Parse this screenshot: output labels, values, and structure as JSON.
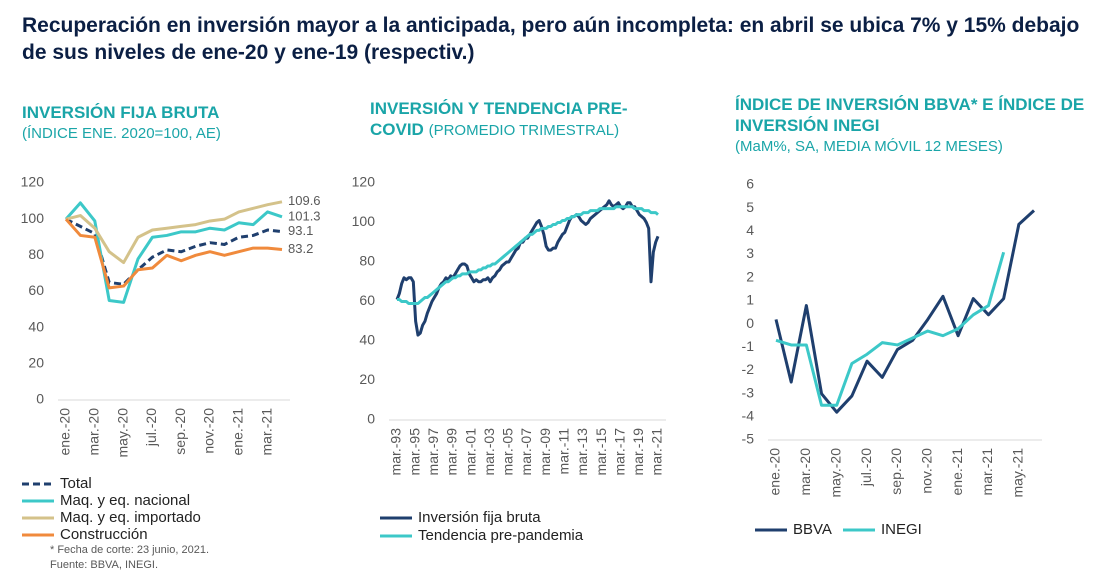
{
  "title": "Recuperación en inversión mayor a la anticipada, pero aún incompleta: en abril se ubica 7% y 15% debajo de sus niveles de ene-20 y ene-19 (respectiv.)",
  "footnotes": [
    "* Fecha de corte: 23 junio, 2021.",
    "Fuente: BBVA, INEGI."
  ],
  "chart_data": [
    {
      "type": "line",
      "title": "INVERSIÓN FIJA BRUTA",
      "subtitle": "(ÍNDICE ENE. 2020=100, AE)",
      "categories": [
        "ene.-20",
        null,
        "mar.-20",
        null,
        "may.-20",
        null,
        "jul.-20",
        null,
        "sep.-20",
        null,
        "nov.-20",
        null,
        "ene.-21",
        null,
        "mar.-21",
        null
      ],
      "series": [
        {
          "name": "Total",
          "color": "#1f3f6e",
          "dashed": true,
          "values": [
            100,
            96,
            92,
            65,
            64,
            72,
            79,
            83,
            82,
            85,
            87,
            86,
            90,
            91,
            94,
            93.1
          ]
        },
        {
          "name": "Maq. y eq. nacional",
          "color": "#3cc8c8",
          "values": [
            100,
            109,
            99,
            55,
            54,
            78,
            90,
            91,
            93,
            93,
            95,
            94,
            98,
            97,
            104,
            101.3
          ]
        },
        {
          "name": "Maq. y eq. importado",
          "color": "#d4c28a",
          "values": [
            100,
            102,
            95,
            82,
            76,
            90,
            94,
            95,
            96,
            97,
            99,
            100,
            104,
            106,
            108,
            109.6
          ]
        },
        {
          "name": "Construcción",
          "color": "#f08a3c",
          "values": [
            100,
            91,
            90,
            62,
            63,
            72,
            73,
            80,
            77,
            80,
            82,
            80,
            82,
            84,
            84,
            83.2
          ]
        }
      ],
      "label_last": true,
      "ylim": [
        0,
        120
      ],
      "yticks": [
        0,
        20,
        40,
        60,
        80,
        100,
        120
      ],
      "grid": false,
      "legend": "bottom"
    },
    {
      "type": "line",
      "title": "INVERSIÓN Y TENDENCIA PRE-COVID",
      "subtitle": "(PROMEDIO TRIMESTRAL)",
      "categories": [
        "mar.-93",
        null,
        null,
        null,
        null,
        null,
        null,
        null,
        "mar.-95",
        null,
        null,
        null,
        null,
        null,
        null,
        null,
        "mar.-97",
        null,
        null,
        null,
        null,
        null,
        null,
        null,
        "mar.-99",
        null,
        null,
        null,
        null,
        null,
        null,
        null,
        "mar.-01",
        null,
        null,
        null,
        null,
        null,
        null,
        null,
        "mar.-03",
        null,
        null,
        null,
        null,
        null,
        null,
        null,
        "mar.-05",
        null,
        null,
        null,
        null,
        null,
        null,
        null,
        "mar.-07",
        null,
        null,
        null,
        null,
        null,
        null,
        null,
        "mar.-09",
        null,
        null,
        null,
        null,
        null,
        null,
        null,
        "mar.-11",
        null,
        null,
        null,
        null,
        null,
        null,
        null,
        "mar.-13",
        null,
        null,
        null,
        null,
        null,
        null,
        null,
        "mar.-15",
        null,
        null,
        null,
        null,
        null,
        null,
        null,
        "mar.-17",
        null,
        null,
        null,
        null,
        null,
        null,
        null,
        "mar.-19",
        null,
        null,
        null,
        null,
        null,
        null,
        null,
        "mar.-21"
      ],
      "series": [
        {
          "name": "Inversión fija bruta",
          "color": "#1f3f6e",
          "values": [
            61,
            64,
            69,
            72,
            71,
            72,
            72,
            70,
            50,
            43,
            44,
            48,
            50,
            54,
            57,
            60,
            62,
            64,
            67,
            69,
            70,
            72,
            71,
            73,
            72,
            74,
            76,
            78,
            79,
            79,
            78,
            74,
            72,
            70,
            71,
            70,
            70,
            71,
            71,
            72,
            70,
            72,
            73,
            75,
            76,
            78,
            79,
            80,
            80,
            82,
            84,
            86,
            87,
            90,
            90,
            92,
            92,
            94,
            96,
            98,
            100,
            101,
            98,
            94,
            88,
            86,
            86,
            87,
            87,
            90,
            92,
            94,
            95,
            98,
            101,
            103,
            103,
            104,
            103,
            101,
            100,
            99,
            100,
            102,
            103,
            104,
            105,
            106,
            107,
            108,
            109,
            111,
            109,
            108,
            109,
            110,
            108,
            107,
            108,
            110,
            110,
            108,
            108,
            106,
            104,
            103,
            102,
            100,
            97,
            70,
            85,
            90,
            93
          ]
        },
        {
          "name": "Tendencia pre-pandemia",
          "color": "#3cc8c8",
          "values": [
            61,
            61,
            60,
            60,
            60,
            59,
            59,
            59,
            59,
            59,
            60,
            61,
            62,
            62,
            63,
            64,
            65,
            66,
            67,
            68,
            69,
            70,
            70,
            71,
            72,
            72,
            73,
            73,
            74,
            74,
            74,
            75,
            75,
            75,
            75,
            76,
            76,
            77,
            77,
            78,
            78,
            79,
            79,
            80,
            81,
            82,
            83,
            84,
            85,
            86,
            87,
            88,
            89,
            90,
            91,
            92,
            93,
            94,
            94,
            95,
            96,
            96,
            97,
            97,
            97,
            98,
            98,
            99,
            99,
            100,
            100,
            101,
            101,
            102,
            102,
            103,
            103,
            104,
            104,
            104,
            105,
            105,
            105,
            106,
            106,
            106,
            106,
            107,
            107,
            107,
            107,
            107,
            107,
            107,
            108,
            108,
            108,
            108,
            108,
            108,
            108,
            108,
            107,
            107,
            107,
            107,
            106,
            106,
            106,
            105,
            105,
            105,
            104
          ]
        }
      ],
      "ylim": [
        0,
        120
      ],
      "yticks": [
        0,
        20,
        40,
        60,
        80,
        100,
        120
      ],
      "grid": false,
      "legend": "bottom"
    },
    {
      "type": "line",
      "title": "ÍNDICE DE INVERSIÓN BBVA* E ÍNDICE DE INVERSIÓN INEGI",
      "subtitle": "(MaM%, SA, MEDIA MÓVIL 12 MESES)",
      "categories": [
        "ene.-20",
        null,
        "mar.-20",
        null,
        "may.-20",
        null,
        "jul.-20",
        null,
        "sep.-20",
        null,
        "nov.-20",
        null,
        "ene.-21",
        null,
        "mar.-21",
        null,
        "may.-21",
        null
      ],
      "series": [
        {
          "name": "BBVA",
          "color": "#1f3f6e",
          "values": [
            0.2,
            -2.5,
            0.8,
            -3.0,
            -3.8,
            -3.1,
            -1.6,
            -2.3,
            -1.1,
            -0.7,
            0.2,
            1.2,
            -0.5,
            1.1,
            0.4,
            1.1,
            4.3,
            4.9
          ]
        },
        {
          "name": "INEGI",
          "color": "#3cc8c8",
          "values": [
            -0.7,
            -0.9,
            -0.9,
            -3.5,
            -3.5,
            -1.7,
            -1.3,
            -0.8,
            -0.9,
            -0.6,
            -0.3,
            -0.5,
            -0.2,
            0.4,
            0.8,
            3.1,
            null,
            null
          ]
        }
      ],
      "ylim": [
        -5,
        6
      ],
      "yticks": [
        -5,
        -4,
        -3,
        -2,
        -1,
        0,
        1,
        2,
        3,
        4,
        5,
        6
      ],
      "grid": false,
      "legend": "bottom"
    }
  ]
}
